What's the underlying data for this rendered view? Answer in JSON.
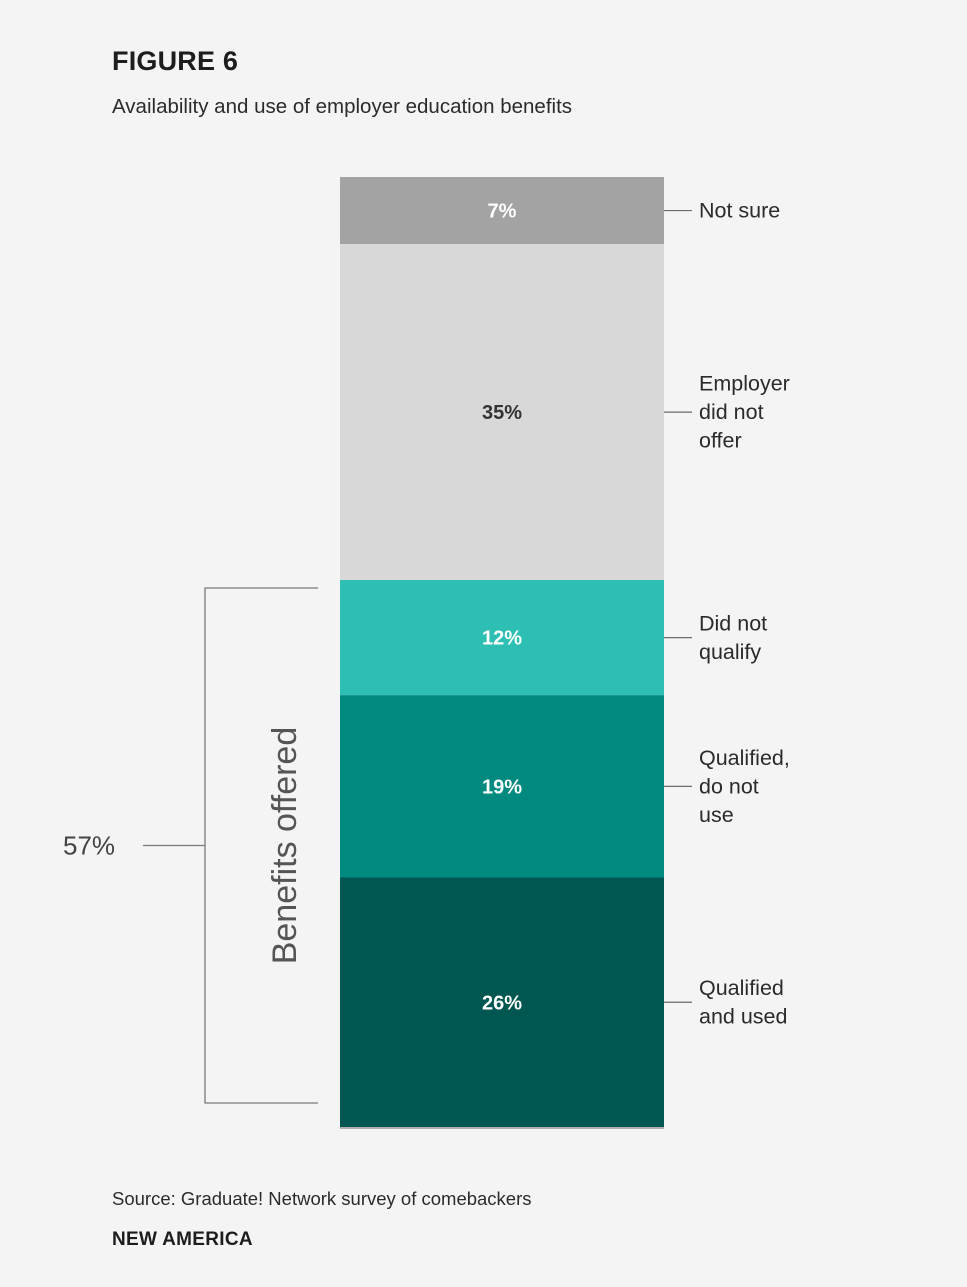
{
  "header": {
    "figure_label": "FIGURE 6",
    "subtitle": "Availability and use of employer education benefits"
  },
  "chart_data": {
    "type": "bar",
    "orientation": "vertical-stacked",
    "title": "Availability and use of employer education benefits",
    "xlabel": "",
    "ylabel": "",
    "ylim": [
      0,
      99
    ],
    "grid": false,
    "legend": "right (leader-line labels)",
    "series": [
      {
        "name": "Not sure",
        "label_lines": [
          "Not sure"
        ],
        "value": 7,
        "value_label": "7%",
        "color": "#a3a3a3",
        "text_color": "#ffffff"
      },
      {
        "name": "Employer did not offer",
        "label_lines": [
          "Employer",
          "did not",
          "offer"
        ],
        "value": 35,
        "value_label": "35%",
        "color": "#d8d8d8",
        "text_color": "#333333"
      },
      {
        "name": "Did not qualify",
        "label_lines": [
          "Did not",
          "qualify"
        ],
        "value": 12,
        "value_label": "12%",
        "color": "#2ebfb4",
        "text_color": "#ffffff"
      },
      {
        "name": "Qualified, do not use",
        "label_lines": [
          "Qualified,",
          "do not",
          "use"
        ],
        "value": 19,
        "value_label": "19%",
        "color": "#00897e",
        "text_color": "#ffffff"
      },
      {
        "name": "Qualified and used",
        "label_lines": [
          "Qualified",
          "and used"
        ],
        "value": 26,
        "value_label": "26%",
        "color": "#005650",
        "text_color": "#ffffff"
      }
    ],
    "bracket": {
      "label": "Benefits offered",
      "value": 57,
      "value_label": "57%",
      "covers": [
        "Did not qualify",
        "Qualified, do not use",
        "Qualified and used"
      ]
    }
  },
  "footer": {
    "source": "Source: Graduate! Network survey of comebackers",
    "brand": "NEW AMERICA"
  }
}
